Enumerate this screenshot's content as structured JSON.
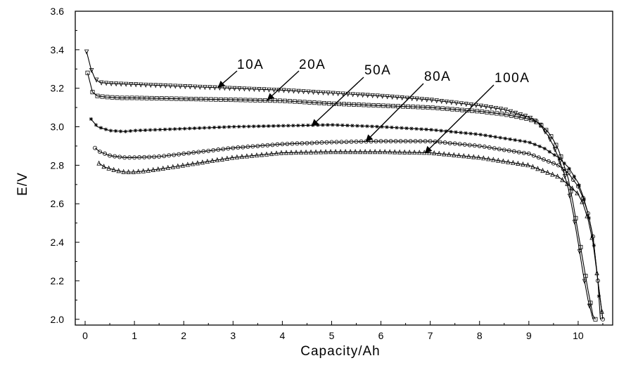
{
  "chart_data": {
    "type": "line",
    "title": "",
    "xlabel": "Capacity/Ah",
    "ylabel": "E/V",
    "xlim": [
      -0.2,
      10.7
    ],
    "ylim": [
      1.97,
      3.6
    ],
    "xticks": [
      0,
      1,
      2,
      3,
      4,
      5,
      6,
      7,
      8,
      9,
      10
    ],
    "yticks": [
      2.0,
      2.2,
      2.4,
      2.6,
      2.8,
      3.0,
      3.2,
      3.4,
      3.6
    ],
    "xtick_labels": [
      "0",
      "1",
      "2",
      "3",
      "4",
      "5",
      "6",
      "7",
      "8",
      "9",
      "10"
    ],
    "ytick_labels": [
      "2.0",
      "2.2",
      "2.4",
      "2.6",
      "2.8",
      "3.0",
      "3.2",
      "3.4",
      "3.6"
    ],
    "grid": false,
    "legend": "none",
    "series": [
      {
        "name": "10A",
        "marker": "triangle-down",
        "x": [
          0.03,
          0.12,
          0.2,
          0.3,
          0.5,
          1,
          2,
          3,
          4,
          5,
          6,
          7,
          8,
          8.5,
          9,
          9.2,
          9.4,
          9.5,
          9.6,
          9.7,
          9.8,
          9.9,
          10.0,
          10.1,
          10.2,
          10.3
        ],
        "y": [
          3.39,
          3.3,
          3.25,
          3.23,
          3.225,
          3.22,
          3.21,
          3.2,
          3.19,
          3.175,
          3.16,
          3.14,
          3.11,
          3.09,
          3.05,
          3.02,
          2.95,
          2.9,
          2.84,
          2.77,
          2.68,
          2.55,
          2.4,
          2.24,
          2.1,
          2.0
        ]
      },
      {
        "name": "20A",
        "marker": "square",
        "x": [
          0.05,
          0.15,
          0.25,
          0.4,
          0.7,
          1,
          2,
          3,
          4,
          5,
          6,
          7,
          8,
          8.5,
          9,
          9.2,
          9.4,
          9.5,
          9.6,
          9.7,
          9.8,
          9.9,
          10.0,
          10.1,
          10.2,
          10.3,
          10.35
        ],
        "y": [
          3.28,
          3.18,
          3.16,
          3.155,
          3.15,
          3.15,
          3.145,
          3.14,
          3.135,
          3.12,
          3.11,
          3.1,
          3.08,
          3.065,
          3.04,
          3.02,
          2.97,
          2.93,
          2.88,
          2.81,
          2.73,
          2.6,
          2.45,
          2.3,
          2.15,
          2.02,
          2.0
        ]
      },
      {
        "name": "50A",
        "marker": "asterisk",
        "x": [
          0.12,
          0.25,
          0.5,
          0.8,
          1,
          2,
          3,
          4,
          5,
          6,
          7,
          8,
          9,
          9.3,
          9.6,
          9.8,
          10.0,
          10.1,
          10.2,
          10.3,
          10.4,
          10.45
        ],
        "y": [
          3.04,
          3.0,
          2.98,
          2.975,
          2.98,
          2.99,
          3.0,
          3.005,
          3.01,
          3.0,
          2.985,
          2.96,
          2.92,
          2.89,
          2.84,
          2.79,
          2.71,
          2.64,
          2.55,
          2.43,
          2.2,
          2.0
        ]
      },
      {
        "name": "80A",
        "marker": "circle",
        "x": [
          0.2,
          0.3,
          0.5,
          0.8,
          1.0,
          1.5,
          2,
          3,
          4,
          5,
          6,
          7,
          8,
          9,
          9.3,
          9.6,
          9.8,
          10.0,
          10.1,
          10.2,
          10.3,
          10.4,
          10.5
        ],
        "y": [
          2.89,
          2.87,
          2.85,
          2.84,
          2.84,
          2.845,
          2.86,
          2.89,
          2.91,
          2.92,
          2.925,
          2.925,
          2.9,
          2.86,
          2.83,
          2.8,
          2.76,
          2.69,
          2.63,
          2.55,
          2.43,
          2.2,
          2.0
        ]
      },
      {
        "name": "100A",
        "marker": "triangle-up",
        "x": [
          0.28,
          0.4,
          0.6,
          0.8,
          1.0,
          1.2,
          1.5,
          2,
          3,
          4,
          5,
          6,
          7,
          8,
          9,
          9.3,
          9.6,
          9.8,
          10.0,
          10.1,
          10.2,
          10.3,
          10.4,
          10.5
        ],
        "y": [
          2.81,
          2.79,
          2.775,
          2.765,
          2.765,
          2.77,
          2.78,
          2.8,
          2.84,
          2.865,
          2.87,
          2.87,
          2.865,
          2.84,
          2.8,
          2.77,
          2.74,
          2.7,
          2.65,
          2.6,
          2.52,
          2.4,
          2.2,
          2.0
        ]
      }
    ],
    "annotations": [
      {
        "text": "10A",
        "target_series": "10A",
        "target_x": 2.7,
        "target_y": 3.205
      },
      {
        "text": "20A",
        "target_series": "20A",
        "target_x": 3.7,
        "target_y": 3.14
      },
      {
        "text": "50A",
        "target_series": "50A",
        "target_x": 4.6,
        "target_y": 3.005
      },
      {
        "text": "80A",
        "target_series": "80A",
        "target_x": 5.7,
        "target_y": 2.925
      },
      {
        "text": "100A",
        "target_series": "100A",
        "target_x": 6.9,
        "target_y": 2.865
      }
    ]
  }
}
